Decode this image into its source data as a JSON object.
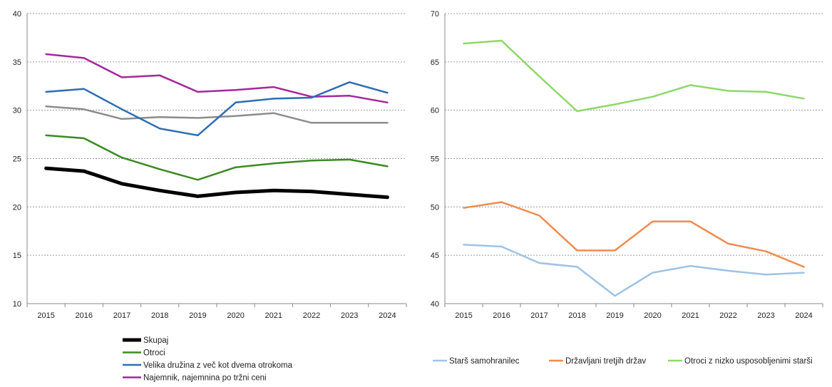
{
  "chart_data": [
    {
      "type": "line",
      "categories": [
        "2015",
        "2016",
        "2017",
        "2018",
        "2019",
        "2020",
        "2021",
        "2022",
        "2023",
        "2024"
      ],
      "ylim": [
        10,
        40
      ],
      "yticks": [
        10,
        15,
        20,
        25,
        30,
        35,
        40
      ],
      "grid": "horizontal dashed",
      "legend_position": "bottom",
      "series": [
        {
          "name": "Skupaj",
          "color": "#000000",
          "width": 5,
          "in_legend": true,
          "values": [
            24.0,
            23.7,
            22.4,
            21.7,
            21.1,
            21.5,
            21.7,
            21.6,
            21.3,
            21.0
          ]
        },
        {
          "name": "Otroci",
          "color": "#3b8a22",
          "width": 2.5,
          "in_legend": true,
          "values": [
            27.4,
            27.1,
            25.1,
            23.9,
            22.8,
            24.1,
            24.5,
            24.8,
            24.9,
            24.2
          ]
        },
        {
          "name": "Velika družina z več kot dvema otrokoma",
          "color": "#2e6db4",
          "width": 2.5,
          "in_legend": true,
          "values": [
            31.9,
            32.2,
            30.1,
            28.1,
            27.4,
            30.8,
            31.2,
            31.3,
            32.9,
            31.8
          ]
        },
        {
          "name": "Najemnik, najemnina po tržni ceni",
          "color": "#a5279e",
          "width": 2.5,
          "in_legend": true,
          "values": [
            35.8,
            35.4,
            33.4,
            33.6,
            31.9,
            32.1,
            32.4,
            31.4,
            31.5,
            30.8
          ]
        },
        {
          "name": "",
          "color": "#8c8c8c",
          "width": 2.5,
          "in_legend": false,
          "values": [
            30.4,
            30.1,
            29.1,
            29.3,
            29.2,
            29.4,
            29.7,
            28.7,
            28.7,
            28.7
          ]
        }
      ]
    },
    {
      "type": "line",
      "categories": [
        "2015",
        "2016",
        "2017",
        "2018",
        "2019",
        "2020",
        "2021",
        "2022",
        "2023",
        "2024"
      ],
      "ylim": [
        40,
        70
      ],
      "yticks": [
        40,
        45,
        50,
        55,
        60,
        65,
        70
      ],
      "grid": "horizontal dashed",
      "legend_position": "bottom",
      "series": [
        {
          "name": "Starš samohranilec",
          "color": "#9dc3e6",
          "width": 2.5,
          "in_legend": true,
          "values": [
            46.1,
            45.9,
            44.2,
            43.8,
            40.8,
            43.2,
            43.9,
            43.4,
            43.0,
            43.2
          ]
        },
        {
          "name": "Državljani tretjih držav",
          "color": "#f08b4f",
          "width": 2.5,
          "in_legend": true,
          "values": [
            49.9,
            50.5,
            49.1,
            45.5,
            45.5,
            48.5,
            48.5,
            46.2,
            45.4,
            43.8
          ]
        },
        {
          "name": "Otroci z nizko usposobljenimi starši",
          "color": "#8fd86a",
          "width": 2.5,
          "in_legend": true,
          "values": [
            66.9,
            67.2,
            63.5,
            59.9,
            60.6,
            61.4,
            62.6,
            62.0,
            61.9,
            61.2
          ]
        }
      ]
    }
  ]
}
